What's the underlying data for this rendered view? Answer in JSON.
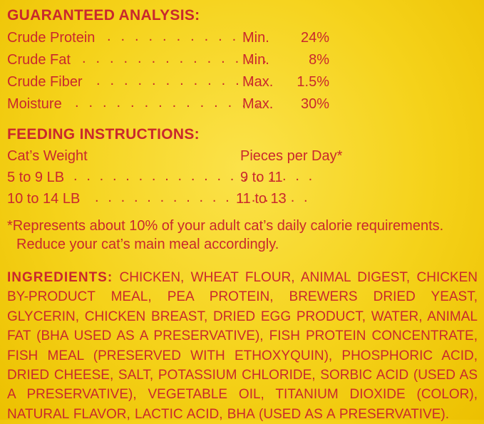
{
  "guaranteed_analysis": {
    "heading": "GUARANTEED ANALYSIS:",
    "rows": [
      {
        "name": "Crude Protein",
        "dots": ". . . . . . . . . . .",
        "qualifier": "Min.",
        "value": "24%"
      },
      {
        "name": "Crude Fat",
        "dots": ". . . . . . . . . . . . . .",
        "qualifier": "Min.",
        "value": "8%"
      },
      {
        "name": "Crude Fiber",
        "dots": ". . . . . . . . . . . .",
        "qualifier": "Max.",
        "value": "1.5%"
      },
      {
        "name": "Moisture",
        "dots": ". . . . . . . . . . . . . .",
        "qualifier": "Max.",
        "value": "30%"
      }
    ]
  },
  "feeding_instructions": {
    "heading": "FEEDING INSTRUCTIONS:",
    "col_weight": "Cat’s Weight",
    "col_pieces": "Pieces per Day*",
    "rows": [
      {
        "weight": "5 to 9 LB",
        "dots": ". . . . . . . . . . . . . . . . . . .",
        "pieces": "9 to 11"
      },
      {
        "weight": "10 to 14 LB",
        "dots": ". . . . . . . . . . . . . . . . .",
        "pieces": "11 to 13"
      }
    ],
    "note_line1": "*Represents about 10% of your adult cat’s daily calorie requirements.",
    "note_line2": "Reduce your cat’s main meal accordingly."
  },
  "ingredients": {
    "heading": "INGREDIENTS:",
    "text": "CHICKEN, WHEAT FLOUR, ANIMAL DIGEST, CHICKEN BY-PRODUCT MEAL, PEA PROTEIN, BREWERS DRIED YEAST, GLYCERIN, CHICKEN BREAST, DRIED EGG PRODUCT, WATER, ANIMAL FAT (BHA USED AS A PRESERVATIVE), FISH PROTEIN CONCENTRATE, FISH MEAL (PRESERVED WITH ETHOXYQUIN), PHOSPHORIC ACID, DRIED CHEESE, SALT, POTASSIUM CHLORIDE, SORBIC ACID (USED AS A PRESERVATIVE), VEGETABLE OIL, TITANIUM DIOXIDE (COLOR), NATURAL FLAVOR, LACTIC ACID, BHA (USED AS A PRESERVATIVE)."
  },
  "colors": {
    "text": "#c9282d",
    "background": "#f5d21a"
  }
}
